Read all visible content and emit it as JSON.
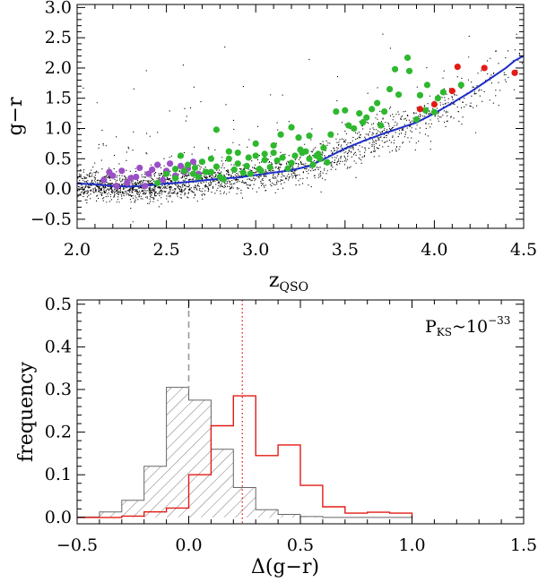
{
  "chart_data": [
    {
      "type": "scatter",
      "xlabel": "z",
      "xlabel_sub": "QSO",
      "ylabel": "g−r",
      "xlim": [
        2.0,
        4.5
      ],
      "ylim": [
        -0.65,
        3.05
      ],
      "xticks": [
        "2.0",
        "2.5",
        "3.0",
        "3.5",
        "4.0",
        "4.5"
      ],
      "yticks": [
        "−0.5",
        "0.0",
        "0.5",
        "1.0",
        "1.5",
        "2.0",
        "2.5",
        "3.0"
      ],
      "colors": {
        "background_points": "#000000",
        "median_line": "#1f2fc8",
        "green": "#2eb82e",
        "purple": "#9b4fc7",
        "red": "#e31b14"
      },
      "series": [
        {
          "name": "median track",
          "x": [
            2.0,
            2.1,
            2.2,
            2.3,
            2.4,
            2.5,
            2.6,
            2.7,
            2.8,
            2.9,
            3.0,
            3.1,
            3.2,
            3.3,
            3.4,
            3.5,
            3.6,
            3.7,
            3.8,
            3.9,
            4.0,
            4.1,
            4.2,
            4.3,
            4.4,
            4.45,
            4.5
          ],
          "y": [
            0.09,
            0.08,
            0.05,
            0.04,
            0.06,
            0.09,
            0.11,
            0.14,
            0.17,
            0.19,
            0.23,
            0.27,
            0.31,
            0.38,
            0.52,
            0.67,
            0.79,
            0.9,
            1.0,
            1.1,
            1.25,
            1.42,
            1.6,
            1.8,
            2.0,
            2.12,
            2.2
          ]
        },
        {
          "name": "green points",
          "x": [
            2.55,
            2.62,
            2.7,
            2.78,
            2.85,
            2.9,
            2.95,
            3.0,
            3.05,
            3.1,
            3.15,
            3.2,
            3.25,
            3.3,
            3.35,
            3.4,
            2.6,
            2.65,
            2.75,
            2.8,
            2.88,
            2.93,
            3.02,
            3.08,
            3.12,
            3.18,
            3.22,
            3.28,
            3.32,
            3.38,
            2.5,
            2.58,
            2.68,
            2.72,
            2.82,
            2.97,
            3.03,
            3.14,
            3.24,
            3.36,
            2.78,
            3.0,
            3.2,
            3.3,
            3.42,
            3.55,
            3.6,
            3.65,
            3.7,
            3.72,
            3.8,
            3.9,
            3.95,
            4.0,
            4.05,
            3.85,
            3.78,
            3.5,
            3.45,
            3.62,
            3.68,
            3.92,
            3.75,
            3.52,
            3.58,
            4.15,
            2.75,
            2.9,
            3.1,
            3.05,
            2.85,
            2.96,
            3.26,
            3.34,
            2.55,
            2.66,
            3.86,
            4.02,
            3.96,
            2.45
          ],
          "y": [
            0.33,
            0.4,
            0.45,
            0.37,
            0.5,
            0.42,
            0.38,
            0.55,
            0.48,
            0.6,
            0.52,
            0.43,
            0.65,
            0.5,
            0.58,
            0.44,
            0.3,
            0.25,
            0.28,
            0.2,
            0.32,
            0.27,
            0.33,
            0.36,
            0.47,
            0.34,
            0.55,
            0.62,
            0.4,
            0.68,
            0.25,
            0.55,
            0.2,
            0.28,
            0.16,
            0.25,
            0.3,
            0.9,
            0.85,
            0.5,
            0.98,
            0.75,
            1.02,
            0.88,
            0.9,
            1.0,
            1.1,
            1.32,
            1.05,
            1.28,
            1.56,
            1.15,
            1.3,
            1.27,
            1.6,
            2.17,
            1.98,
            1.3,
            1.28,
            1.18,
            1.42,
            1.55,
            1.65,
            1.05,
            1.25,
            1.72,
            0.5,
            0.6,
            0.72,
            0.58,
            0.62,
            0.52,
            0.6,
            0.55,
            0.18,
            0.35,
            1.95,
            1.5,
            1.72,
            0.1
          ],
          "marker_color": "#2eb82e"
        },
        {
          "name": "purple points",
          "x": [
            2.15,
            2.2,
            2.25,
            2.3,
            2.35,
            2.4,
            2.45,
            2.5,
            2.55,
            2.6,
            2.65,
            2.22,
            2.28,
            2.33,
            2.42,
            2.48,
            2.58,
            2.62,
            2.38,
            2.18,
            2.52,
            2.68
          ],
          "y": [
            0.15,
            0.22,
            0.3,
            0.18,
            0.35,
            0.25,
            0.4,
            0.3,
            0.22,
            0.28,
            0.45,
            0.05,
            0.1,
            0.2,
            0.32,
            0.15,
            0.38,
            0.34,
            0.05,
            0.28,
            0.42,
            0.25
          ],
          "marker_color": "#9b4fc7"
        },
        {
          "name": "red points",
          "x": [
            3.92,
            4.0,
            4.1,
            4.13,
            4.28,
            4.45
          ],
          "y": [
            1.32,
            1.4,
            1.62,
            2.02,
            2.0,
            1.92
          ],
          "marker_color": "#e31b14"
        }
      ]
    },
    {
      "type": "histogram",
      "xlabel": "Δ(g−r)",
      "ylabel": "frequency",
      "xlim": [
        -0.5,
        1.5
      ],
      "ylim": [
        -0.015,
        0.51
      ],
      "xticks": [
        "−0.5",
        "0.0",
        "0.5",
        "1.0",
        "1.5"
      ],
      "yticks": [
        "0.0",
        "0.1",
        "0.2",
        "0.3",
        "0.4",
        "0.5"
      ],
      "annotation": {
        "main": "P",
        "sub": "KS",
        "tilde": "~10",
        "sup": "−33"
      },
      "bin_edges": [
        -0.5,
        -0.4,
        -0.3,
        -0.2,
        -0.1,
        0.0,
        0.1,
        0.2,
        0.3,
        0.4,
        0.5,
        0.6,
        0.7,
        0.8,
        0.9,
        1.0
      ],
      "series": [
        {
          "name": "hatched (gray)",
          "counts": [
            0.001,
            0.013,
            0.04,
            0.12,
            0.305,
            0.275,
            0.16,
            0.07,
            0.018,
            0.007,
            0.002,
            0.0,
            0.0,
            0.0,
            0.0
          ],
          "color": "#666666"
        },
        {
          "name": "red",
          "counts": [
            0.0,
            0.0,
            0.003,
            0.013,
            0.022,
            0.1,
            0.215,
            0.285,
            0.145,
            0.17,
            0.075,
            0.025,
            0.01,
            0.012,
            0.01
          ],
          "color": "#e31b14"
        }
      ],
      "vlines": [
        {
          "x": 0.0,
          "style": "dashed",
          "color": "#999999"
        },
        {
          "x": 0.24,
          "style": "dotted",
          "color": "#e31b14"
        }
      ]
    }
  ]
}
